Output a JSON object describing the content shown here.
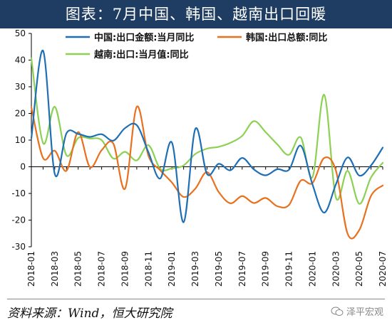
{
  "title": "图表：7月中国、韩国、越南出口回暖",
  "source": "资料来源：Wind，恒大研究院",
  "watermark": "泽平宏观",
  "chart_data": {
    "type": "line",
    "x": [
      "2018-01",
      "2018-02",
      "2018-03",
      "2018-04",
      "2018-05",
      "2018-06",
      "2018-07",
      "2018-08",
      "2018-09",
      "2018-10",
      "2018-11",
      "2018-12",
      "2019-01",
      "2019-02",
      "2019-03",
      "2019-04",
      "2019-05",
      "2019-06",
      "2019-07",
      "2019-08",
      "2019-09",
      "2019-10",
      "2019-11",
      "2019-12",
      "2020-01",
      "2020-02",
      "2020-03",
      "2020-04",
      "2020-05",
      "2020-06",
      "2020-07"
    ],
    "x_tick_labels": [
      "2018-01",
      "2018-03",
      "2018-05",
      "2018-07",
      "2018-09",
      "2018-11",
      "2019-01",
      "2019-03",
      "2019-05",
      "2019-07",
      "2019-09",
      "2019-11",
      "2020-01",
      "2020-03",
      "2020-05",
      "2020-07"
    ],
    "ylim": [
      -30,
      50
    ],
    "yticks": [
      -30,
      -20,
      -10,
      0,
      10,
      20,
      30,
      40,
      50
    ],
    "legend_position": "top-right",
    "series": [
      {
        "name": "中国:出口金额:当月同比",
        "color": "#1f6fb5",
        "values": [
          10.7,
          43.5,
          -2.7,
          12.6,
          12.3,
          11.2,
          12.2,
          9.8,
          14.5,
          15.6,
          5.4,
          -4.4,
          9.1,
          -20.8,
          14.2,
          -2.7,
          1.1,
          -1.3,
          3.3,
          -1.0,
          -3.2,
          -0.9,
          -1.1,
          7.9,
          -6.6,
          -17.2,
          -6.6,
          3.5,
          -3.3,
          0.5,
          7.2
        ]
      },
      {
        "name": "韩国:出口总额:同比",
        "color": "#e8711f",
        "values": [
          22.3,
          3.3,
          6.0,
          -1.5,
          13.0,
          -0.1,
          6.2,
          8.7,
          -8.2,
          22.5,
          4.1,
          -1.3,
          -5.9,
          -11.3,
          -8.2,
          -2.0,
          -9.5,
          -13.7,
          -11.0,
          -13.6,
          -11.7,
          -14.8,
          -14.3,
          -5.2,
          -6.1,
          3.3,
          -1.4,
          -25.1,
          -23.7,
          -10.9,
          -7.0
        ]
      },
      {
        "name": "越南:出口:当月值:同比",
        "color": "#8cd153",
        "values": [
          40.7,
          8.9,
          22.5,
          4.3,
          10.8,
          10.6,
          10.0,
          3.1,
          5.6,
          2.4,
          8.1,
          -0.8,
          -0.6,
          0.5,
          4.8,
          6.8,
          7.5,
          9.0,
          11.6,
          17.1,
          13.0,
          8.4,
          4.5,
          11.0,
          -3.9,
          27.0,
          -11.5,
          -1.5,
          -13.9,
          -4.0,
          1.5
        ]
      }
    ]
  }
}
